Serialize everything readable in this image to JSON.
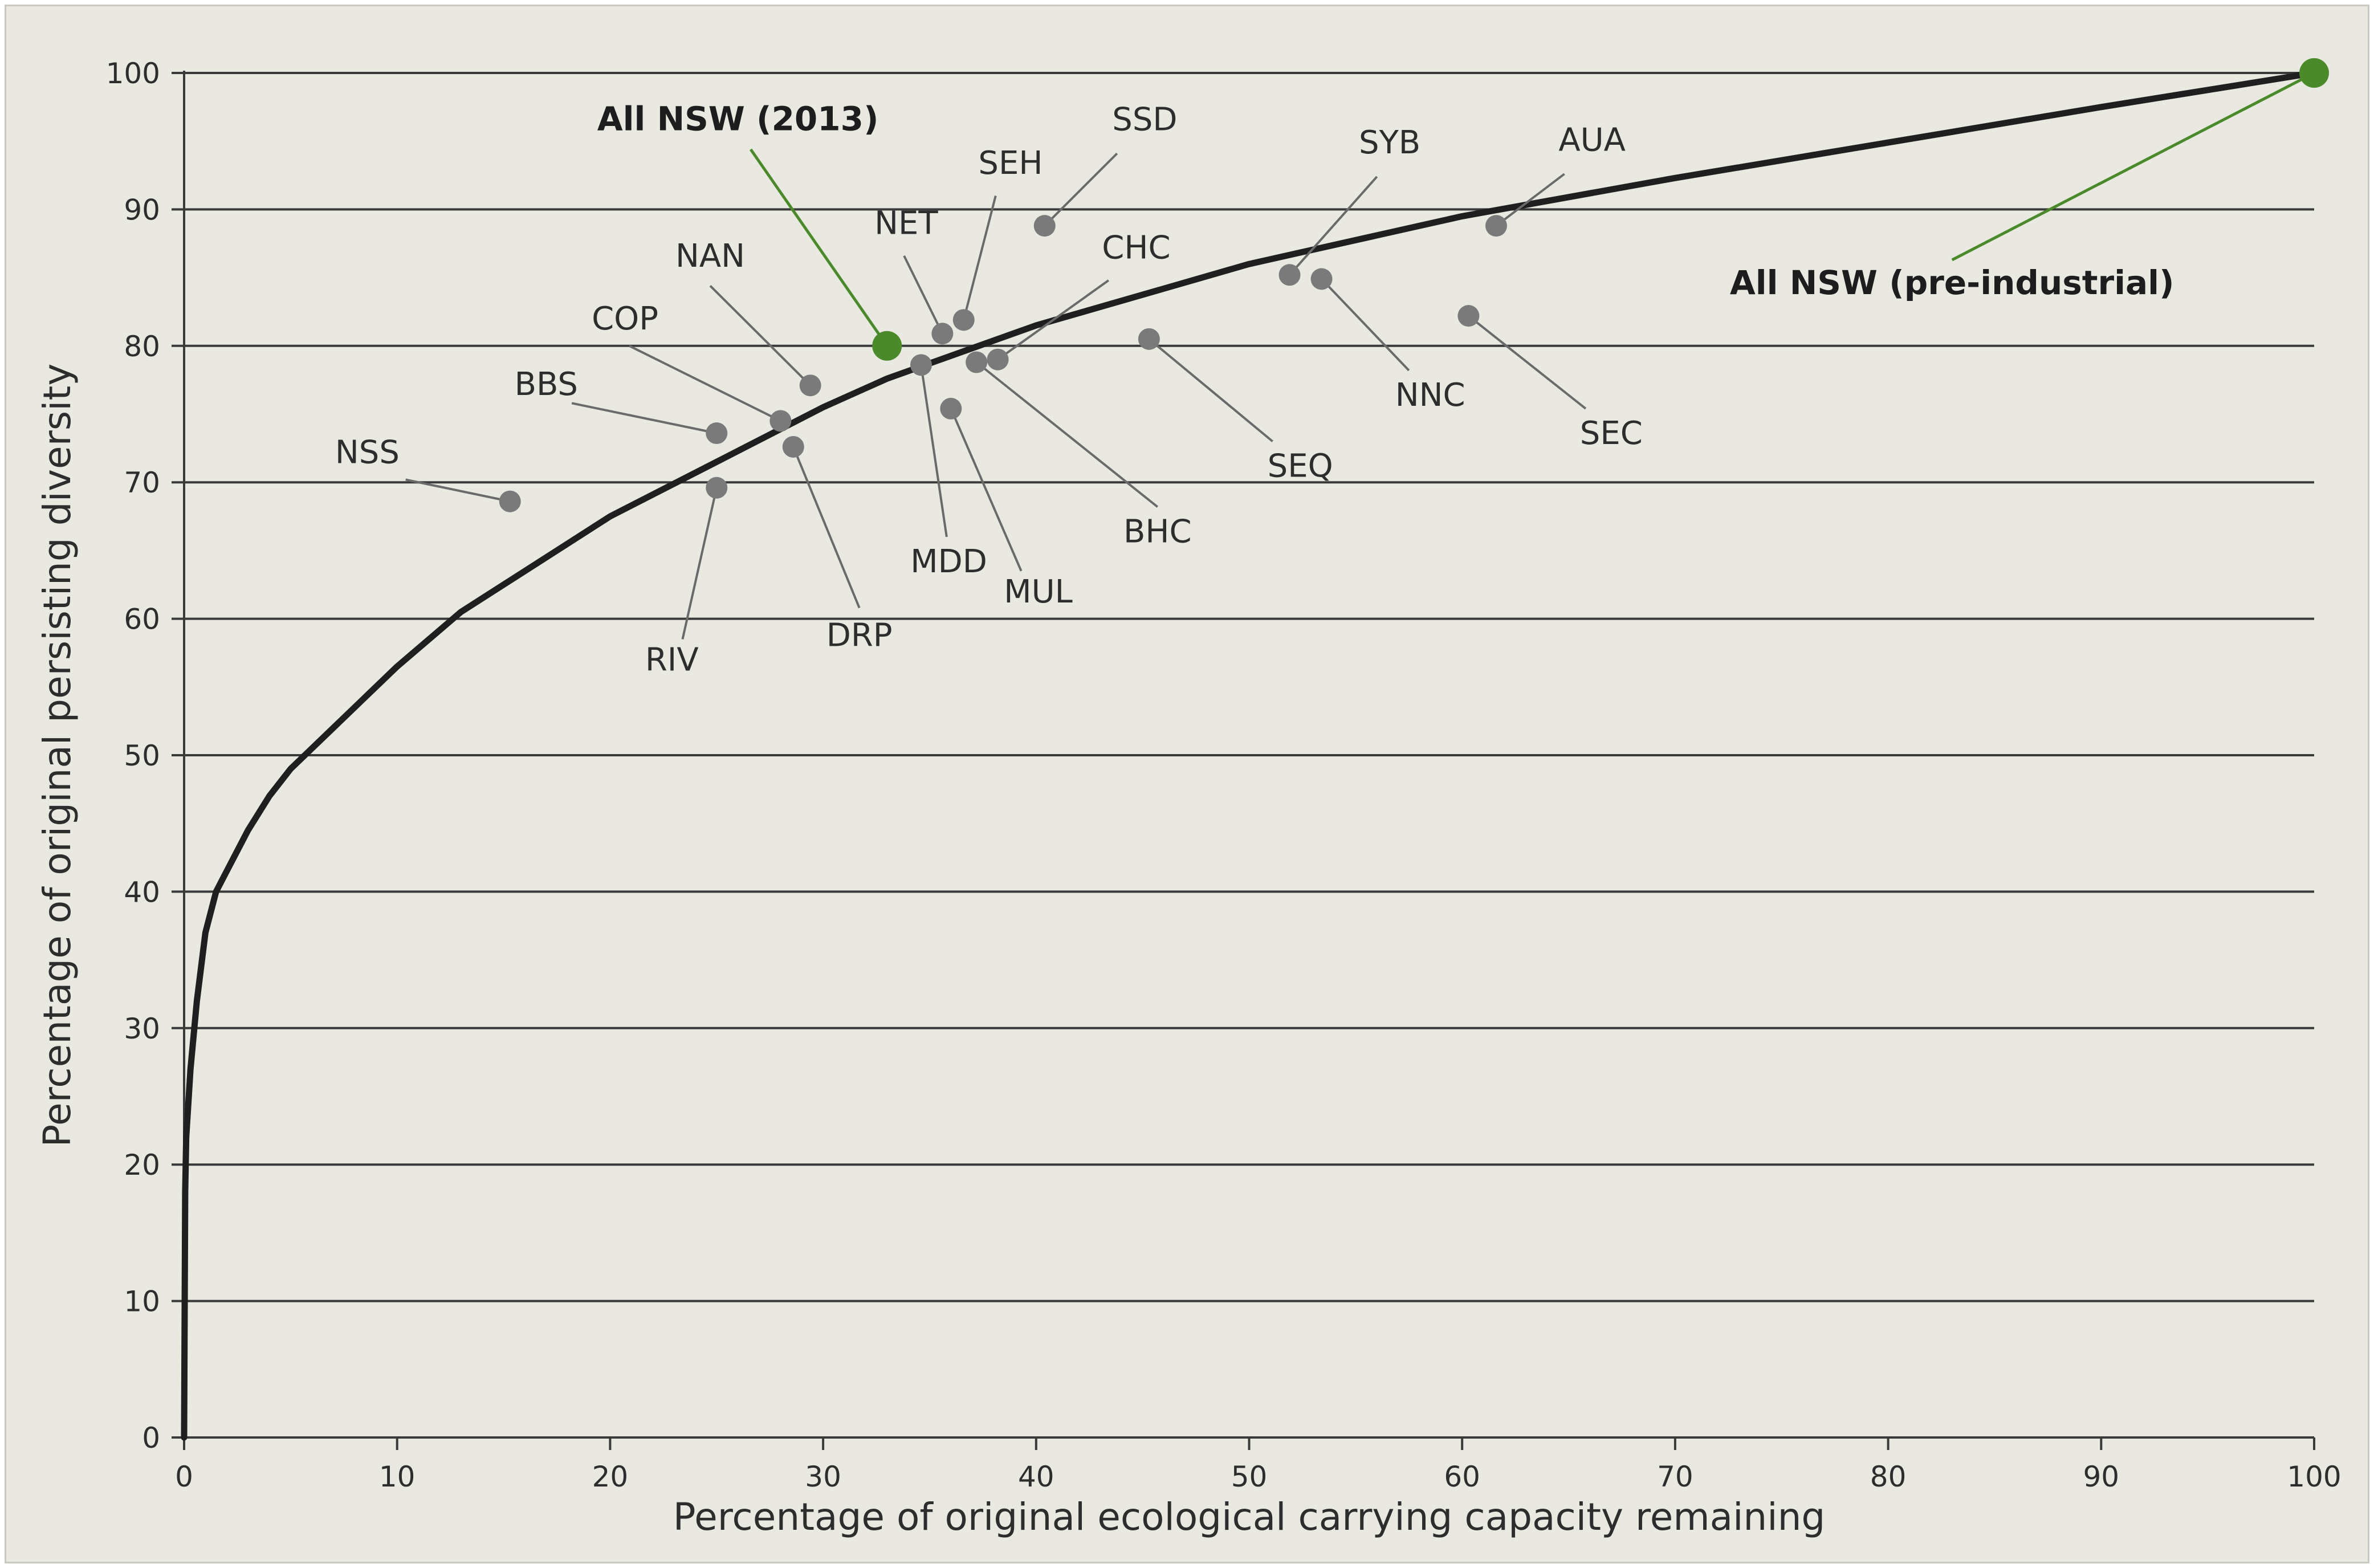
{
  "chart_data": {
    "type": "scatter",
    "xlabel": "Percentage of original ecological carrying capacity remaining",
    "ylabel": "Percentage of original persisting diversity",
    "xlim": [
      0,
      100
    ],
    "ylim": [
      0,
      100
    ],
    "x_ticks": [
      0,
      10,
      20,
      30,
      40,
      50,
      60,
      70,
      80,
      90,
      100
    ],
    "y_ticks": [
      0,
      10,
      20,
      30,
      40,
      50,
      60,
      70,
      80,
      90,
      100
    ],
    "grid": "horizontal",
    "colors": {
      "background": "#e9e9e1",
      "curve": "#1f1f1f",
      "points": "#7a7a7a",
      "highlight": "#4a8a2a",
      "leader": "#6a6a6a",
      "grid": "#3a3a3a"
    },
    "curve": {
      "x": [
        0,
        0.05,
        0.1,
        0.3,
        0.6,
        1,
        1.5,
        2,
        3,
        4,
        5,
        7,
        10,
        13,
        15,
        20,
        25,
        30,
        33,
        40,
        50,
        60,
        70,
        80,
        90,
        100
      ],
      "y": [
        0,
        18,
        22,
        27,
        32,
        37,
        40,
        41.5,
        44.5,
        47,
        49,
        52,
        56.5,
        60.5,
        62.5,
        67.5,
        71.5,
        75.5,
        77.6,
        81.5,
        86,
        89.5,
        92.3,
        94.9,
        97.5,
        100
      ]
    },
    "points": [
      {
        "name": "NSS",
        "x": 15.3,
        "y": 68.6
      },
      {
        "name": "BBS",
        "x": 25.0,
        "y": 73.6
      },
      {
        "name": "RIV",
        "x": 25.0,
        "y": 69.6
      },
      {
        "name": "COP",
        "x": 28.0,
        "y": 74.5
      },
      {
        "name": "DRP",
        "x": 28.6,
        "y": 72.6
      },
      {
        "name": "NAN",
        "x": 29.4,
        "y": 77.1
      },
      {
        "name": "MDD",
        "x": 34.6,
        "y": 78.6
      },
      {
        "name": "NET",
        "x": 35.6,
        "y": 80.9
      },
      {
        "name": "MUL",
        "x": 36.0,
        "y": 75.4
      },
      {
        "name": "SEH",
        "x": 36.6,
        "y": 81.9
      },
      {
        "name": "BHC",
        "x": 37.2,
        "y": 78.8
      },
      {
        "name": "CHC",
        "x": 38.2,
        "y": 79.0
      },
      {
        "name": "SSD",
        "x": 40.4,
        "y": 88.8
      },
      {
        "name": "SEQ",
        "x": 45.3,
        "y": 80.5
      },
      {
        "name": "SYB",
        "x": 51.9,
        "y": 85.2
      },
      {
        "name": "NNC",
        "x": 53.4,
        "y": 84.9
      },
      {
        "name": "SEC",
        "x": 60.3,
        "y": 82.2
      },
      {
        "name": "AUA",
        "x": 61.6,
        "y": 88.8
      }
    ],
    "highlights": [
      {
        "name": "All NSW (2013)",
        "x": 33.0,
        "y": 80.0
      },
      {
        "name": "All NSW (pre-industrial)",
        "x": 100,
        "y": 100
      }
    ]
  }
}
